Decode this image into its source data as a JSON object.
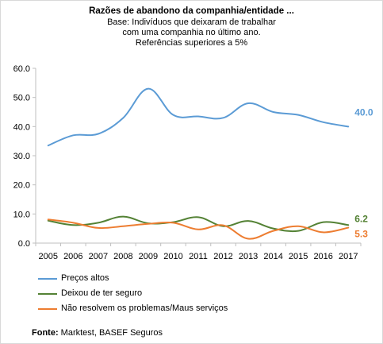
{
  "chart_data": {
    "type": "line",
    "title": "Razões  de abandono  da companhia/entidade  ...",
    "subtitle_lines": [
      "Base: Indivíduos  que deixaram de trabalhar",
      "com uma companhia no último ano.",
      "Referências superiores a 5%"
    ],
    "categories": [
      "2005",
      "2006",
      "2007",
      "2008",
      "2009",
      "2010",
      "2011",
      "2012",
      "2013",
      "2014",
      "2015",
      "2016",
      "2017"
    ],
    "ylim": [
      0,
      60
    ],
    "yticks": [
      "0.0",
      "10.0",
      "20.0",
      "30.0",
      "40.0",
      "50.0",
      "60.0"
    ],
    "grid": false,
    "legend_position": "bottom",
    "series": [
      {
        "name": "Preços altos",
        "color": "#5b9bd5",
        "values": [
          33.5,
          37.0,
          37.5,
          43.0,
          53.0,
          44.0,
          43.5,
          43.0,
          48.0,
          45.0,
          44.0,
          41.5,
          40.0
        ],
        "end_label": "40.0"
      },
      {
        "name": "Deixou de ter seguro",
        "color": "#548235",
        "values": [
          7.7,
          6.2,
          7.0,
          9.1,
          6.8,
          7.2,
          8.9,
          5.8,
          7.6,
          5.0,
          4.2,
          7.2,
          6.2
        ],
        "end_label": "6.2"
      },
      {
        "name": "Não resolvem os problemas/Maus serviços",
        "color": "#ed7d31",
        "values": [
          8.1,
          7.0,
          5.2,
          5.8,
          6.6,
          7.0,
          4.7,
          6.1,
          1.5,
          4.2,
          5.8,
          3.7,
          5.3
        ],
        "end_label": "5.3"
      }
    ]
  },
  "source": {
    "label": "Fonte:",
    "text": " Marktest, BASEF Seguros"
  }
}
